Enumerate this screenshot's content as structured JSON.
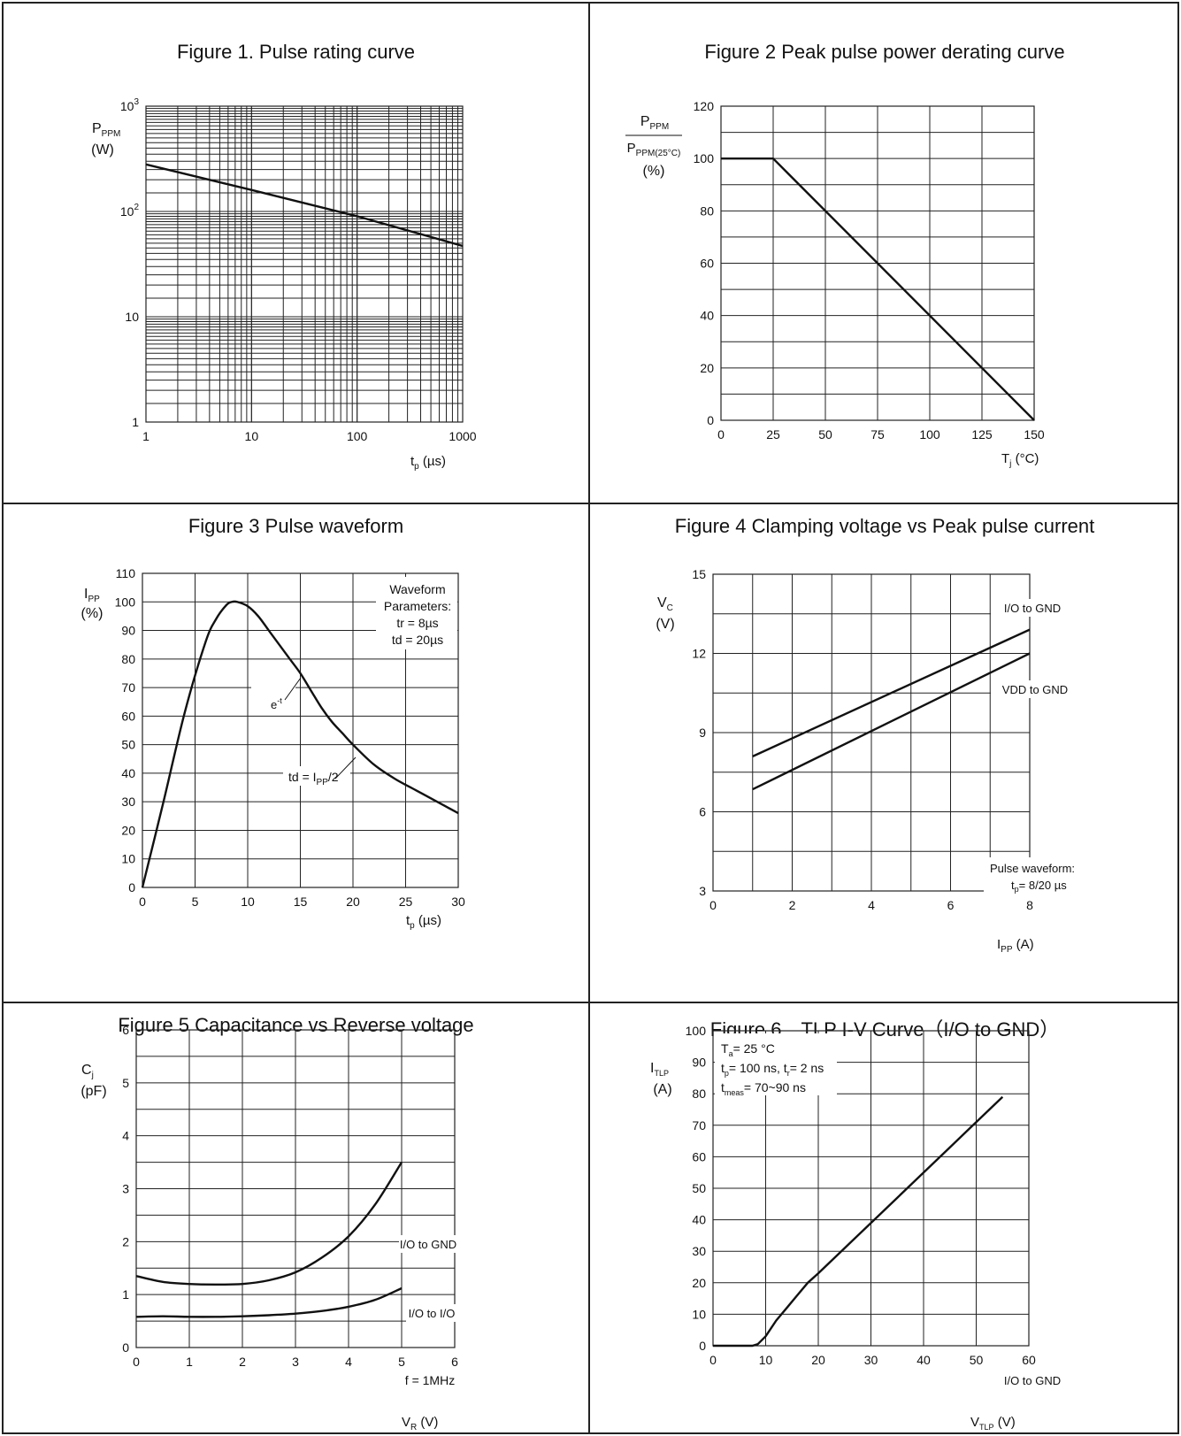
{
  "figures": [
    {
      "title": "Figure 1. Pulse rating curve",
      "chart_data": {
        "type": "line",
        "xscale": "log",
        "yscale": "log",
        "xlim": [
          1,
          1000
        ],
        "ylim": [
          1,
          1000
        ],
        "xticks": [
          "1",
          "10",
          "100",
          "1000"
        ],
        "ylabel_main": "P",
        "ylabel_sub": "PPM",
        "ylabel_unit": "(W)",
        "xlabel_main": "t",
        "xlabel_sub": "p",
        "xlabel_unit": " (µs)",
        "series": [
          {
            "x": [
              1,
              10,
              100,
              1000
            ],
            "y": [
              280,
              160,
              90,
              47
            ]
          }
        ]
      }
    },
    {
      "title": "Figure 2 Peak pulse power derating curve",
      "chart_data": {
        "type": "line",
        "xlim": [
          0,
          150
        ],
        "ylim": [
          0,
          120
        ],
        "xticks": [
          0,
          25,
          50,
          75,
          100,
          125,
          150
        ],
        "yticks": [
          0,
          20,
          40,
          60,
          80,
          100,
          120
        ],
        "ylabel_num_main": "P",
        "ylabel_num_sub": "PPM",
        "ylabel_den_main": "P",
        "ylabel_den_sub": "PPM(25°C)",
        "ylabel_unit": "(%)",
        "xlabel_main": "T",
        "xlabel_sub": "j",
        "xlabel_unit": " (°C)",
        "series": [
          {
            "x": [
              0,
              25,
              150
            ],
            "y": [
              100,
              100,
              0
            ]
          }
        ]
      }
    },
    {
      "title": "Figure 3 Pulse waveform",
      "chart_data": {
        "type": "line",
        "xlim": [
          0,
          30
        ],
        "ylim": [
          0,
          110
        ],
        "xticks": [
          0,
          5,
          10,
          15,
          20,
          25,
          30
        ],
        "yticks": [
          0,
          10,
          20,
          30,
          40,
          50,
          60,
          70,
          80,
          90,
          100,
          110
        ],
        "ylabel_main": "I",
        "ylabel_sub": "PP",
        "ylabel_unit": "(%)",
        "xlabel_main": "t",
        "xlabel_sub": "p",
        "xlabel_unit": " (µs)",
        "annotation_lines": [
          "Waveform",
          "Parameters:",
          "tr = 8µs",
          "td = 20µs"
        ],
        "label_et_main": "e",
        "label_et_sup": "-t",
        "label_td_main": "td = I",
        "label_td_sub": "PP",
        "label_td_tail": "/2",
        "series": [
          {
            "x": [
              0,
              2,
              4,
              6,
              7,
              8,
              8.5,
              9,
              10,
              11,
              12,
              13,
              14,
              15,
              16,
              17,
              18,
              19,
              20,
              22,
              24,
              26,
              28,
              30
            ],
            "y": [
              0,
              30,
              61,
              86,
              94,
              99,
              100,
              100,
              98.5,
              95,
              90,
              85,
              80,
              75,
              69,
              63,
              58,
              54,
              50,
              43,
              38,
              34,
              30,
              26
            ]
          }
        ]
      }
    },
    {
      "title": "Figure 4 Clamping voltage vs Peak pulse current",
      "chart_data": {
        "type": "line",
        "xlim": [
          0,
          8
        ],
        "ylim": [
          3,
          15
        ],
        "xticks": [
          0,
          2,
          4,
          6,
          8
        ],
        "yticks": [
          3,
          6,
          9,
          12,
          15
        ],
        "ylabel_main": "V",
        "ylabel_sub": "C",
        "ylabel_unit": "(V)",
        "xlabel_main": "I",
        "xlabel_sub": "PP",
        "xlabel_unit": " (A)",
        "note_line1": "Pulse waveform:",
        "note_main": "t",
        "note_sub": "p",
        "note_tail": "= 8/20 µs",
        "series": [
          {
            "name": "I/O to GND",
            "x": [
              1,
              8
            ],
            "y": [
              8.1,
              12.9
            ]
          },
          {
            "name": "VDD to GND",
            "x": [
              1,
              8
            ],
            "y": [
              6.85,
              12.0
            ]
          }
        ]
      }
    },
    {
      "title": "Figure 5 Capacitance vs Reverse voltage",
      "chart_data": {
        "type": "line",
        "xlim": [
          0,
          6
        ],
        "ylim": [
          0,
          6
        ],
        "xticks": [
          0,
          1,
          2,
          3,
          4,
          5,
          6
        ],
        "yticks": [
          0,
          1,
          2,
          3,
          4,
          5,
          6
        ],
        "ylabel_main": "C",
        "ylabel_sub": "j",
        "ylabel_unit": "(pF)",
        "xlabel_main": "V",
        "xlabel_sub": "R",
        "xlabel_unit": " (V)",
        "note": "f = 1MHz",
        "series": [
          {
            "name": "I/O to GND",
            "x": [
              0,
              0.5,
              1,
              1.5,
              2,
              2.5,
              3,
              3.5,
              4,
              4.5,
              5
            ],
            "y": [
              1.35,
              1.24,
              1.2,
              1.19,
              1.2,
              1.27,
              1.42,
              1.7,
              2.1,
              2.7,
              3.5
            ]
          },
          {
            "name": "I/O to I/O",
            "x": [
              0,
              0.5,
              1,
              1.5,
              2,
              2.5,
              3,
              3.5,
              4,
              4.5,
              5
            ],
            "y": [
              0.58,
              0.59,
              0.58,
              0.58,
              0.59,
              0.61,
              0.64,
              0.69,
              0.77,
              0.9,
              1.12
            ]
          }
        ]
      }
    },
    {
      "title": "Figure 6　TLP I-V Curve（I/O to GND）",
      "chart_data": {
        "type": "line",
        "xlim": [
          0,
          60
        ],
        "ylim": [
          0,
          100
        ],
        "xticks": [
          0,
          10,
          20,
          30,
          40,
          50,
          60
        ],
        "yticks": [
          0,
          10,
          20,
          30,
          40,
          50,
          60,
          70,
          80,
          90,
          100
        ],
        "ylabel_main": "I",
        "ylabel_sub": "TLP",
        "ylabel_unit": "(A)",
        "xlabel_main": "V",
        "xlabel_sub": "TLP",
        "xlabel_unit": " (V)",
        "cond1_main": "T",
        "cond1_sub": "a",
        "cond1_tail": "= 25 °C",
        "cond2_main": "t",
        "cond2_sub": "p",
        "cond2_mid": "= 100 ns, t",
        "cond2_sub2": "r",
        "cond2_tail": "= 2 ns",
        "cond3_main": "t",
        "cond3_sub": "meas",
        "cond3_tail": "= 70~90 ns",
        "series_label": "I/O to GND",
        "series": [
          {
            "x": [
              0,
              7.5,
              8.5,
              10,
              12,
              14,
              16,
              18,
              20,
              25,
              30,
              35,
              40,
              45,
              50,
              55
            ],
            "y": [
              0,
              0,
              0.5,
              3,
              8,
              12,
              16,
              20,
              23,
              31,
              39,
              47,
              55,
              63,
              71,
              79
            ]
          }
        ]
      }
    }
  ]
}
